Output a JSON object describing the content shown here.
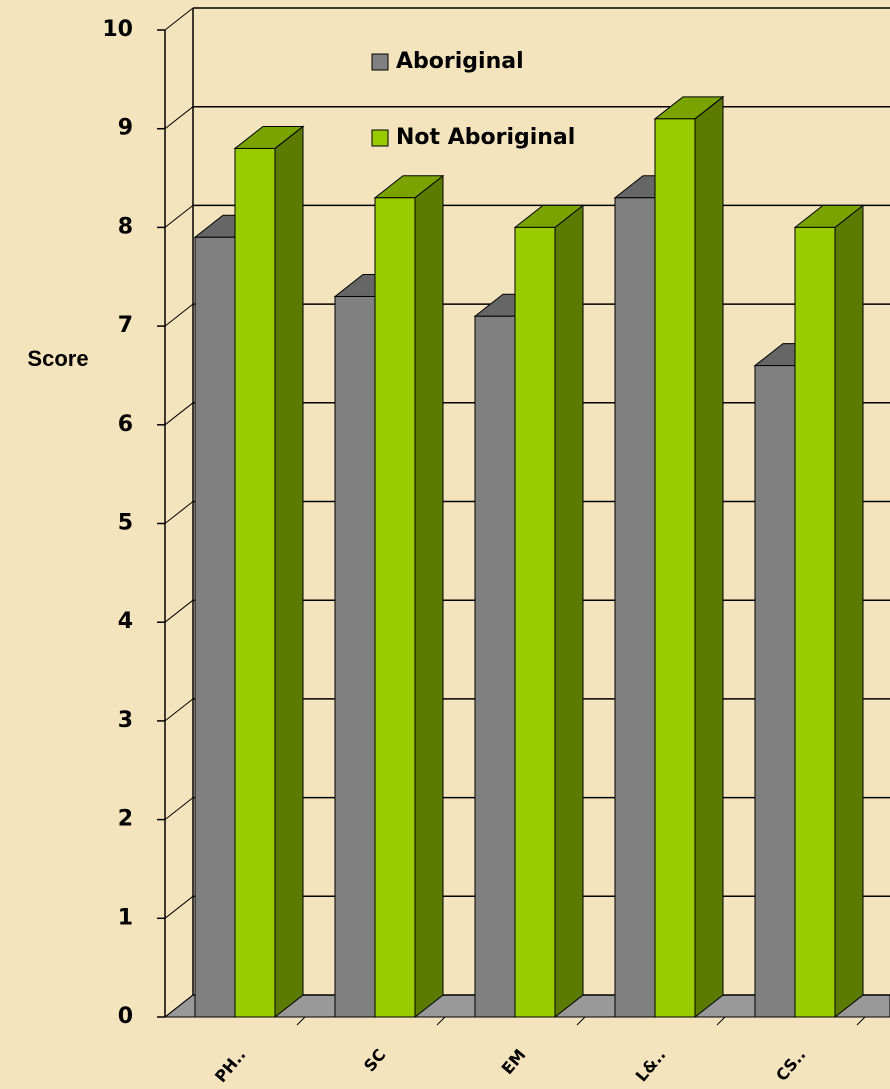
{
  "chart_data": {
    "type": "bar3d",
    "y_label": "Score",
    "categories": [
      "PH..",
      "SC",
      "EM",
      "L&..",
      "CS.."
    ],
    "series": [
      {
        "name": "Aboriginal",
        "color": "#808080",
        "values": [
          7.9,
          7.3,
          7.1,
          8.3,
          6.6
        ]
      },
      {
        "name": "Not Aboriginal",
        "color": "#99cc00",
        "values": [
          8.8,
          8.3,
          8.0,
          9.1,
          8.0
        ]
      }
    ],
    "ylim": [
      0,
      10
    ],
    "yticks": [
      0,
      1,
      2,
      3,
      4,
      5,
      6,
      7,
      8,
      9,
      10
    ],
    "grid": true
  }
}
